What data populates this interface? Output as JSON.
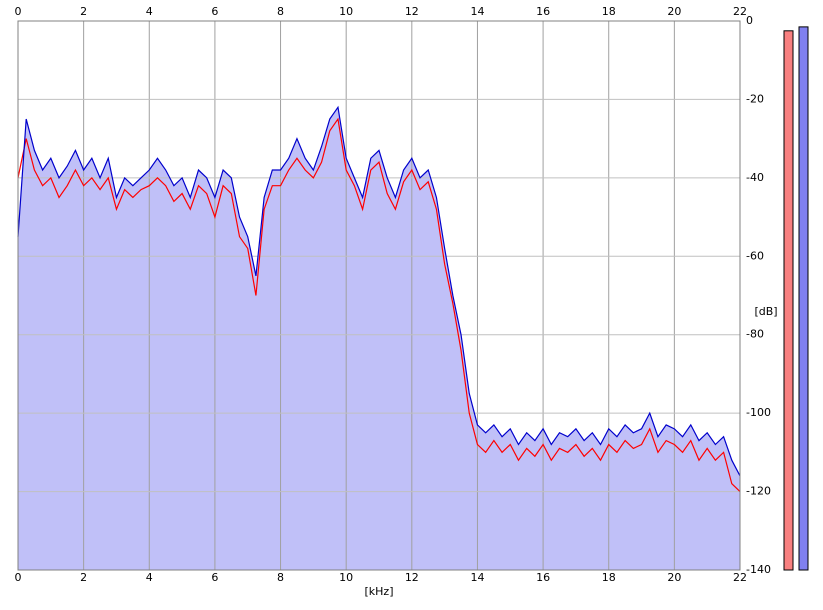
{
  "chart_data": {
    "type": "line",
    "x": [
      0,
      0.25,
      0.5,
      0.75,
      1,
      1.25,
      1.5,
      1.75,
      2,
      2.25,
      2.5,
      2.75,
      3,
      3.25,
      3.5,
      3.75,
      4,
      4.25,
      4.5,
      4.75,
      5,
      5.25,
      5.5,
      5.75,
      6,
      6.25,
      6.5,
      6.75,
      7,
      7.25,
      7.5,
      7.75,
      8,
      8.25,
      8.5,
      8.75,
      9,
      9.25,
      9.5,
      9.75,
      10,
      10.25,
      10.5,
      10.75,
      11,
      11.25,
      11.5,
      11.75,
      12,
      12.25,
      12.5,
      12.75,
      13,
      13.25,
      13.5,
      13.75,
      14,
      14.25,
      14.5,
      14.75,
      15,
      15.25,
      15.5,
      15.75,
      16,
      16.25,
      16.5,
      16.75,
      17,
      17.25,
      17.5,
      17.75,
      18,
      18.25,
      18.5,
      18.75,
      19,
      19.25,
      19.5,
      19.75,
      20,
      20.25,
      20.5,
      20.75,
      21,
      21.25,
      21.5,
      21.75,
      22
    ],
    "series": [
      {
        "color": "#ff0000",
        "values": [
          -40,
          -30,
          -38,
          -42,
          -40,
          -45,
          -42,
          -38,
          -42,
          -40,
          -43,
          -40,
          -48,
          -43,
          -45,
          -43,
          -42,
          -40,
          -42,
          -46,
          -44,
          -48,
          -42,
          -44,
          -50,
          -42,
          -44,
          -55,
          -58,
          -70,
          -48,
          -42,
          -42,
          -38,
          -35,
          -38,
          -40,
          -36,
          -28,
          -25,
          -38,
          -42,
          -48,
          -38,
          -36,
          -44,
          -48,
          -41,
          -38,
          -43,
          -41,
          -48,
          -62,
          -72,
          -84,
          -100,
          -108,
          -110,
          -107,
          -110,
          -108,
          -112,
          -109,
          -111,
          -108,
          -112,
          -109,
          -110,
          -108,
          -111,
          -109,
          -112,
          -108,
          -110,
          -107,
          -109,
          -108,
          -104,
          -110,
          -107,
          -108,
          -110,
          -107,
          -112,
          -109,
          -112,
          -110,
          -118,
          -120
        ]
      },
      {
        "color": "#0000cc",
        "fill": "#c0c0f8",
        "values": [
          -55,
          -25,
          -33,
          -38,
          -35,
          -40,
          -37,
          -33,
          -38,
          -35,
          -40,
          -35,
          -45,
          -40,
          -42,
          -40,
          -38,
          -35,
          -38,
          -42,
          -40,
          -45,
          -38,
          -40,
          -45,
          -38,
          -40,
          -50,
          -55,
          -65,
          -45,
          -38,
          -38,
          -35,
          -30,
          -35,
          -38,
          -32,
          -25,
          -22,
          -35,
          -40,
          -45,
          -35,
          -33,
          -40,
          -45,
          -38,
          -35,
          -40,
          -38,
          -45,
          -58,
          -70,
          -80,
          -95,
          -103,
          -105,
          -103,
          -106,
          -104,
          -108,
          -105,
          -107,
          -104,
          -108,
          -105,
          -106,
          -104,
          -107,
          -105,
          -108,
          -104,
          -106,
          -103,
          -105,
          -104,
          -100,
          -106,
          -103,
          -104,
          -106,
          -103,
          -107,
          -105,
          -108,
          -106,
          -112,
          -116
        ]
      }
    ],
    "x_label": "[kHz]",
    "y_label": "[dB]",
    "xlim": [
      0,
      22
    ],
    "xticks": [
      0,
      2,
      4,
      6,
      8,
      10,
      12,
      14,
      16,
      18,
      20,
      22
    ],
    "ylim": [
      -140,
      0
    ],
    "yticks": [
      0,
      -20,
      -40,
      -60,
      -80,
      -100,
      -120,
      -140
    ],
    "grid": true,
    "meter_levels": [
      {
        "color": "#f88080",
        "value": -2.5
      },
      {
        "color": "#8080f0",
        "value": -1.5
      }
    ]
  }
}
